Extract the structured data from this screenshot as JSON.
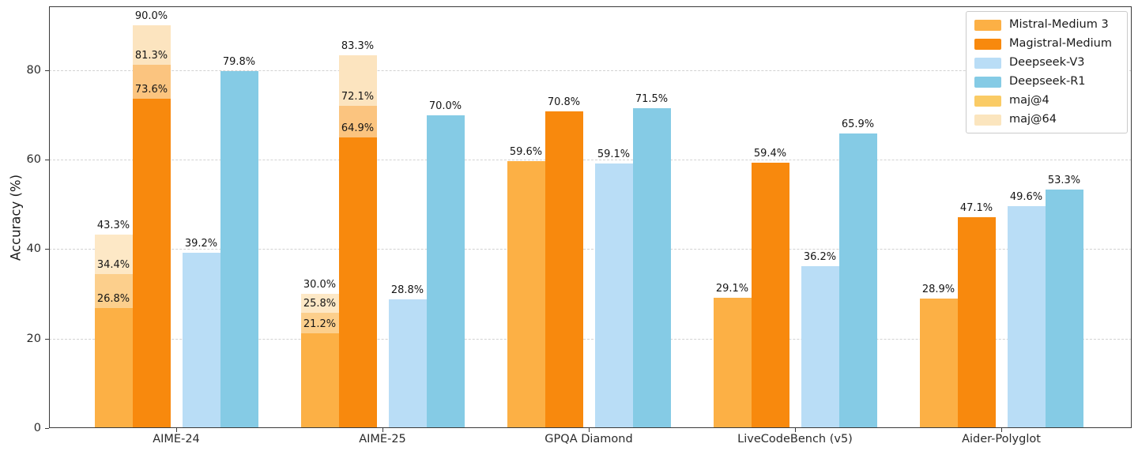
{
  "chart_data": {
    "type": "bar",
    "title": "",
    "xlabel": "",
    "ylabel": "Accuracy (%)",
    "ylim": [
      0,
      94.3
    ],
    "yticks": [
      0,
      20,
      40,
      60,
      80
    ],
    "grid": "horizontal-dashed",
    "grid_color": "#d2d2d2",
    "spine_color": "#3a3a3a",
    "background_color": "#ffffff",
    "legend_position": "top-right",
    "value_label_format": "{value}%",
    "categories": [
      "AIME-24",
      "AIME-25",
      "GPQA Diamond",
      "LiveCodeBench (v5)",
      "Aider-Polyglot"
    ],
    "series": [
      {
        "name": "Mistral-Medium 3",
        "color": "#FCB045",
        "values": [
          26.8,
          21.2,
          59.6,
          29.1,
          28.9
        ],
        "maj4": [
          34.4,
          25.8,
          null,
          null,
          null
        ],
        "maj64": [
          43.3,
          30.0,
          null,
          null,
          null
        ],
        "maj4_color": "#FCCF8C",
        "maj64_color": "#FDE8C6"
      },
      {
        "name": "Magistral-Medium",
        "color": "#F8890D",
        "values": [
          73.6,
          64.9,
          70.8,
          59.4,
          47.1
        ],
        "maj4": [
          81.3,
          72.1,
          null,
          null,
          null
        ],
        "maj64": [
          90.0,
          83.3,
          null,
          null,
          null
        ],
        "maj4_color": "#FBC47F",
        "maj64_color": "#FCE4BF"
      },
      {
        "name": "Deepseek-V3",
        "color": "#B9DDF6",
        "values": [
          39.2,
          28.8,
          59.1,
          36.2,
          49.6
        ],
        "maj4": null,
        "maj64": null
      },
      {
        "name": "Deepseek-R1",
        "color": "#85CBE5",
        "values": [
          79.8,
          70.0,
          71.5,
          65.9,
          53.3
        ],
        "maj4": null,
        "maj64": null
      }
    ],
    "legend": [
      {
        "label": "Mistral-Medium 3",
        "color": "#FCB045"
      },
      {
        "label": "Magistral-Medium",
        "color": "#F8890D"
      },
      {
        "label": "Deepseek-V3",
        "color": "#B9DDF6"
      },
      {
        "label": "Deepseek-R1",
        "color": "#85CBE5"
      },
      {
        "label": "maj@4",
        "color": "#FACB65"
      },
      {
        "label": "maj@64",
        "color": "#FBE5BE"
      }
    ]
  }
}
